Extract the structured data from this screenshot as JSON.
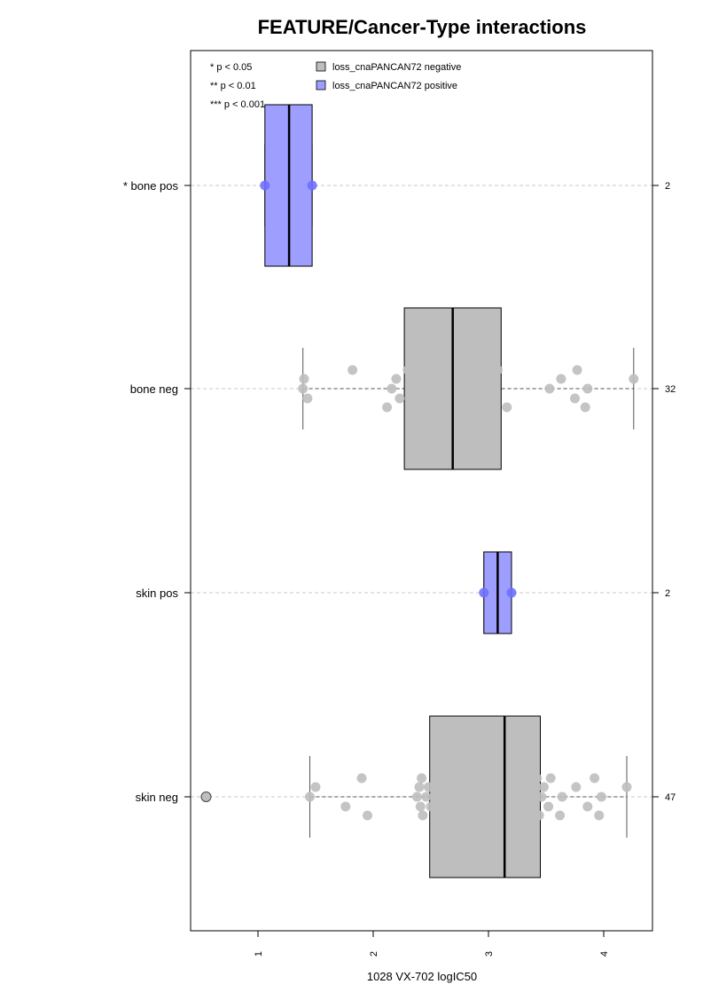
{
  "chart_data": {
    "type": "boxplot",
    "title": "FEATURE/Cancer-Type interactions",
    "xlabel": "1028 VX-702 logIC50",
    "ylabel": "",
    "xlim": [
      0.4,
      4.4
    ],
    "x_ticks": [
      "1",
      "2",
      "3",
      "4"
    ],
    "grid": "horizontal dashed per group",
    "legend_position": "top",
    "significance_legend": [
      "* p < 0.05",
      "** p < 0.01",
      "*** p < 0.001"
    ],
    "series": [
      {
        "name": "loss_cnaPANCAN72 negative",
        "color": "#bebebe"
      },
      {
        "name": "loss_cnaPANCAN72 positive",
        "color": "#9e9eff"
      }
    ],
    "groups": [
      {
        "label": "* bone pos",
        "count": "2",
        "series": "loss_cnaPANCAN72 positive",
        "box": {
          "whisker_low": 1.06,
          "q1": 1.06,
          "median": 1.27,
          "q3": 1.47,
          "whisker_high": 1.47
        },
        "points": [
          1.06,
          1.47
        ],
        "point_color": "#6f6fff"
      },
      {
        "label": "bone neg",
        "count": "32",
        "series": "loss_cnaPANCAN72 negative",
        "box": {
          "whisker_low": 1.39,
          "q1": 2.27,
          "median": 2.69,
          "q3": 3.11,
          "whisker_high": 4.26
        },
        "points": [
          1.39,
          1.4,
          1.43,
          1.82,
          2.12,
          2.16,
          2.2,
          2.23,
          2.3,
          2.32,
          2.39,
          2.42,
          2.49,
          2.6,
          2.64,
          2.68,
          2.7,
          2.77,
          2.84,
          2.9,
          2.93,
          2.95,
          2.96,
          3.08,
          3.16,
          3.53,
          3.63,
          3.75,
          3.77,
          3.84,
          3.86,
          4.26
        ],
        "point_color": "#bebebe"
      },
      {
        "label": "skin pos",
        "count": "2",
        "series": "loss_cnaPANCAN72 positive",
        "box": {
          "whisker_low": 2.96,
          "q1": 2.96,
          "median": 3.08,
          "q3": 3.2,
          "whisker_high": 3.2
        },
        "points": [
          2.96,
          3.2
        ],
        "point_color": "#6f6fff"
      },
      {
        "label": "skin neg",
        "count": "47",
        "series": "loss_cnaPANCAN72 negative",
        "box": {
          "whisker_low": 1.45,
          "q1": 2.49,
          "median": 3.14,
          "q3": 3.45,
          "whisker_high": 4.2
        },
        "outliers": [
          0.55
        ],
        "points": [
          1.45,
          1.5,
          1.76,
          1.9,
          1.95,
          2.38,
          2.4,
          2.41,
          2.42,
          2.43,
          2.46,
          2.48,
          2.5,
          2.54,
          2.66,
          2.68,
          2.7,
          2.74,
          2.76,
          2.94,
          2.98,
          3.03,
          3.08,
          3.1,
          3.14,
          3.16,
          3.24,
          3.26,
          3.3,
          3.32,
          3.36,
          3.38,
          3.4,
          3.42,
          3.44,
          3.46,
          3.48,
          3.52,
          3.54,
          3.62,
          3.64,
          3.76,
          3.86,
          3.92,
          3.96,
          3.98,
          4.2
        ],
        "point_color": "#bebebe"
      }
    ]
  }
}
